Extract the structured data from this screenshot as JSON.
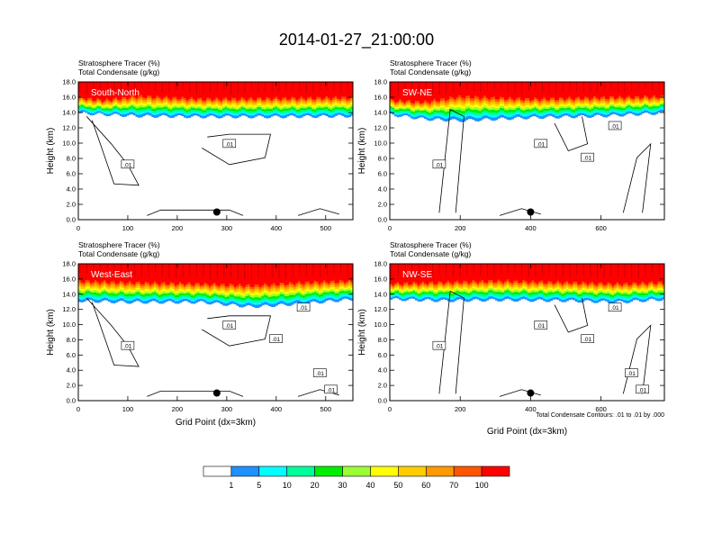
{
  "title": "2014-01-27_21:00:00",
  "colors": {
    "levels": [
      "#ffffff",
      "#1e90ff",
      "#00ffff",
      "#00ff99",
      "#00ee00",
      "#99ff33",
      "#ffff00",
      "#ffcc00",
      "#ff9900",
      "#ff5500",
      "#ff0000"
    ],
    "contour": "#000000",
    "frame": "#000000"
  },
  "colorbar": {
    "labels": [
      "1",
      "5",
      "10",
      "20",
      "30",
      "40",
      "50",
      "60",
      "70",
      "100"
    ]
  },
  "footnote": "Total Condensate Contours: .01 to .01 by .000",
  "chart_data": [
    {
      "type": "heatmap",
      "title_line1": "Stratosphere Tracer   (%)",
      "title_line2": "Total Condensate   (g/kg)",
      "section_label": "South-North",
      "ylabel": "Height (km)",
      "xlabel": "",
      "xlim": [
        0,
        555
      ],
      "ylim": [
        0,
        18
      ],
      "xticks": [
        "0",
        "100",
        "200",
        "300",
        "400",
        "500"
      ],
      "yticks": [
        "0.0",
        "2.0",
        "4.0",
        "6.0",
        "8.0",
        "10.0",
        "12.0",
        "14.0",
        "16.0",
        "18.0"
      ],
      "contour_labels": [
        ".01",
        ".01"
      ],
      "band": {
        "x": [
          0,
          50,
          120,
          250,
          400,
          555
        ],
        "top_red": [
          16.2,
          15.8,
          16.4,
          16.0,
          16.1,
          16.2
        ],
        "base": [
          14.0,
          13.8,
          13.6,
          13.5,
          13.5,
          13.6
        ]
      },
      "marker": {
        "x": 280,
        "y": 1.0
      }
    },
    {
      "type": "heatmap",
      "title_line1": "Stratosphere Tracer   (%)",
      "title_line2": "Total Condensate   (g/kg)",
      "section_label": "SW-NE",
      "ylabel": "Height (km)",
      "xlabel": "",
      "xlim": [
        0,
        780
      ],
      "ylim": [
        0,
        18
      ],
      "xticks": [
        "0",
        "200",
        "400",
        "600"
      ],
      "yticks": [
        "0.0",
        "2.0",
        "4.0",
        "6.0",
        "8.0",
        "10.0",
        "12.0",
        "14.0",
        "16.0",
        "18.0"
      ],
      "contour_labels": [
        ".01",
        ".01",
        ".01",
        ".01"
      ],
      "band": {
        "x": [
          0,
          100,
          200,
          400,
          600,
          780
        ],
        "top_red": [
          15.8,
          15.6,
          16.4,
          16.0,
          16.2,
          16.3
        ],
        "base": [
          13.8,
          13.2,
          13.0,
          13.4,
          13.6,
          14.0
        ]
      },
      "marker": {
        "x": 400,
        "y": 1.0
      }
    },
    {
      "type": "heatmap",
      "title_line1": "Stratosphere Tracer   (%)",
      "title_line2": "Total Condensate   (g/kg)",
      "section_label": "West-East",
      "ylabel": "Height (km)",
      "xlabel": "Grid Point (dx=3km)",
      "xlim": [
        0,
        555
      ],
      "ylim": [
        0,
        18
      ],
      "xticks": [
        "0",
        "100",
        "200",
        "300",
        "400",
        "500"
      ],
      "yticks": [
        "0.0",
        "2.0",
        "4.0",
        "6.0",
        "8.0",
        "10.0",
        "12.0",
        "14.0",
        "16.0",
        "18.0"
      ],
      "contour_labels": [
        ".01",
        ".01",
        ".01",
        ".01",
        ".01",
        ".01"
      ],
      "band": {
        "x": [
          0,
          100,
          250,
          350,
          450,
          555
        ],
        "top_red": [
          16.0,
          15.8,
          15.6,
          15.4,
          15.8,
          16.0
        ],
        "base": [
          13.2,
          13.0,
          13.0,
          12.4,
          12.8,
          13.4
        ]
      },
      "marker": {
        "x": 280,
        "y": 1.0
      }
    },
    {
      "type": "heatmap",
      "title_line1": "Stratosphere Tracer   (%)",
      "title_line2": "Total Condensate   (g/kg)",
      "section_label": "NW-SE",
      "ylabel": "Height (km)",
      "xlabel": "Grid Point (dx=3km)",
      "xlim": [
        0,
        780
      ],
      "ylim": [
        0,
        18
      ],
      "xticks": [
        "0",
        "200",
        "400",
        "600"
      ],
      "yticks": [
        "0.0",
        "2.0",
        "4.0",
        "6.0",
        "8.0",
        "10.0",
        "12.0",
        "14.0",
        "16.0",
        "18.0"
      ],
      "contour_labels": [
        ".01",
        ".01",
        ".01",
        ".01",
        ".01",
        ".01"
      ],
      "band": {
        "x": [
          0,
          150,
          300,
          500,
          650,
          780
        ],
        "top_red": [
          15.6,
          15.8,
          16.0,
          15.8,
          15.6,
          15.8
        ],
        "base": [
          13.4,
          13.2,
          13.3,
          13.2,
          13.0,
          13.4
        ]
      },
      "marker": {
        "x": 400,
        "y": 1.0
      }
    }
  ]
}
